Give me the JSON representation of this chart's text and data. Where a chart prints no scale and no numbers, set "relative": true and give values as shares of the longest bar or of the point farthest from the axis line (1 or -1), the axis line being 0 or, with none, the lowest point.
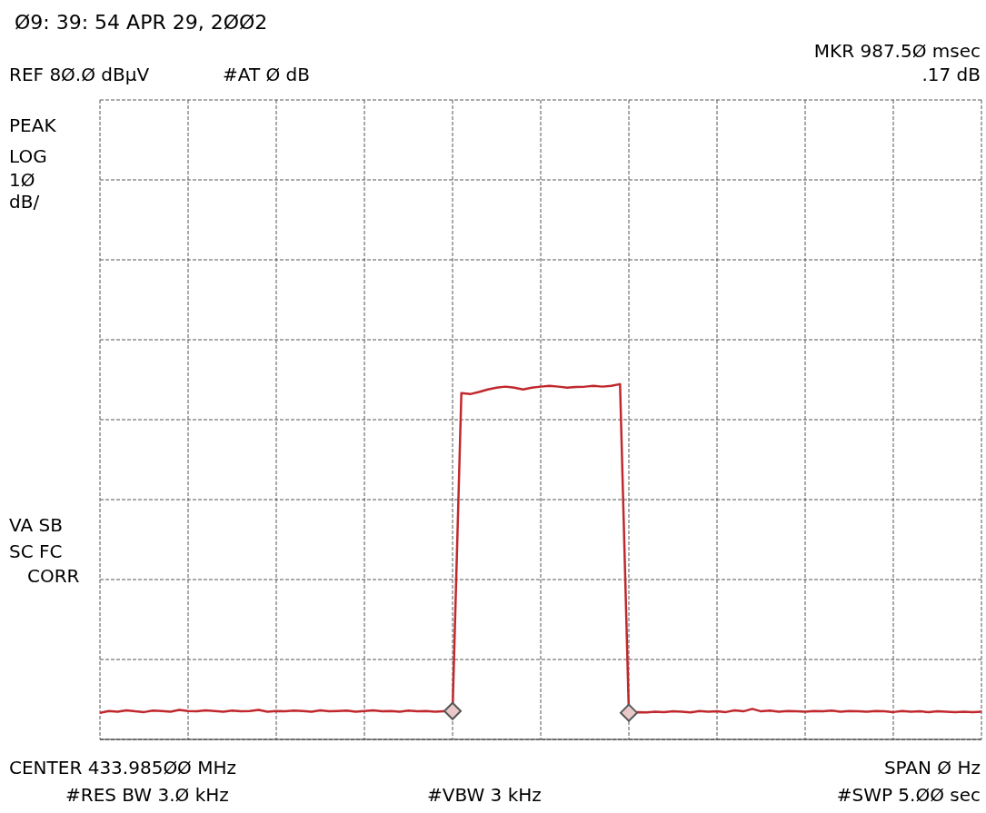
{
  "chart_data": {
    "type": "line",
    "title": "Ø9: 39: 54 APR 29, 2ØØ2",
    "relative": true,
    "grid": true,
    "annotations": [
      "MKR 987.5Ø msec",
      "REF 8Ø.Ø dBμV",
      "#AT Ø dB",
      ".17 dB",
      "PEAK",
      "LOG",
      "1Ø",
      "dB/",
      "VA SB",
      "SC FC",
      "CORR",
      "CENTER 433.985ØØ MHz",
      "SPAN Ø Hz",
      "#RES BW 3.Ø kHz",
      "#VBW 3 kHz",
      "#SWP 5.ØØ sec"
    ],
    "categories": [
      null,
      null,
      null,
      null,
      null,
      null,
      null,
      null,
      null,
      null,
      null,
      null,
      null,
      null,
      null,
      null,
      null,
      null,
      null,
      null,
      null,
      null,
      null,
      null,
      null,
      null,
      null,
      null,
      null,
      null,
      null,
      null,
      null,
      null,
      null,
      null,
      null,
      null,
      null,
      null,
      null,
      null,
      null,
      null,
      null,
      null,
      null,
      null,
      null,
      null,
      null,
      null,
      null,
      null,
      null,
      null,
      null,
      null,
      null,
      null,
      null,
      null,
      null,
      null,
      null,
      null,
      null,
      null,
      null,
      null,
      null,
      null,
      null,
      null,
      null,
      null,
      null,
      null,
      null,
      null,
      null,
      null,
      null,
      null,
      null,
      null,
      null,
      null,
      null,
      null,
      null,
      null,
      null,
      null,
      null,
      null,
      null,
      null,
      null,
      null,
      null
    ],
    "series": [
      {
        "color": "#c0282d",
        "values": [
          0.075,
          0.08,
          0.078,
          0.082,
          0.079,
          0.077,
          0.081,
          0.08,
          0.078,
          0.083,
          0.08,
          0.079,
          0.082,
          0.08,
          0.078,
          0.081,
          0.079,
          0.08,
          0.083,
          0.078,
          0.08,
          0.079,
          0.081,
          0.08,
          0.078,
          0.082,
          0.079,
          0.08,
          0.081,
          0.078,
          0.08,
          0.082,
          0.079,
          0.08,
          0.078,
          0.081,
          0.079,
          0.08,
          0.078,
          0.079,
          0.08,
          0.975,
          0.972,
          0.978,
          0.985,
          0.99,
          0.993,
          0.99,
          0.985,
          0.99,
          0.993,
          0.995,
          0.993,
          0.99,
          0.992,
          0.993,
          0.995,
          0.993,
          0.995,
          1,
          0.075,
          0.077,
          0.076,
          0.078,
          0.077,
          0.079,
          0.078,
          0.076,
          0.08,
          0.078,
          0.079,
          0.077,
          0.082,
          0.079,
          0.086,
          0.079,
          0.081,
          0.078,
          0.08,
          0.079,
          0.078,
          0.08,
          0.079,
          0.081,
          0.078,
          0.08,
          0.079,
          0.078,
          0.08,
          0.079,
          0.077,
          0.08,
          0.078,
          0.079,
          0.077,
          0.079,
          0.078,
          0.077,
          0.078,
          0.077,
          0.078
        ]
      }
    ]
  }
}
